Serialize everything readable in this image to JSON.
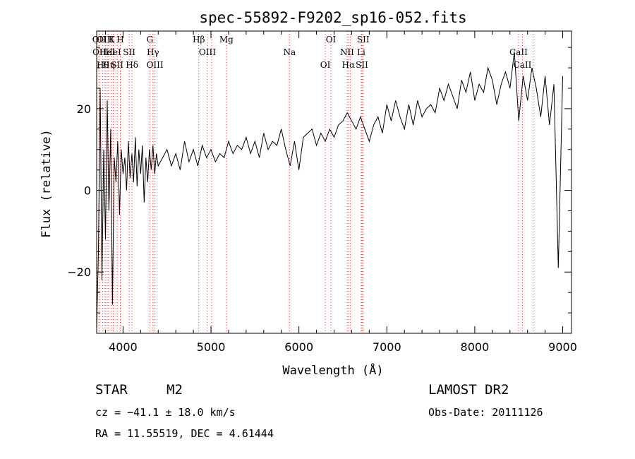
{
  "chart_data": {
    "type": "line",
    "title": "spec-55892-F9202_sp16-052.fits",
    "xlabel": "Wavelength (Å)",
    "ylabel": "Flux (relative)",
    "xlim": [
      3700,
      9100
    ],
    "ylim": [
      -35,
      39
    ],
    "x_ticks": [
      4000,
      5000,
      6000,
      7000,
      8000,
      9000
    ],
    "y_ticks": [
      -20,
      0,
      20
    ],
    "grid": false,
    "series": [
      {
        "name": "",
        "color": "#000000",
        "x": [
          3700,
          3720,
          3740,
          3760,
          3780,
          3800,
          3820,
          3840,
          3860,
          3880,
          3900,
          3920,
          3940,
          3960,
          3980,
          4000,
          4020,
          4040,
          4060,
          4080,
          4100,
          4120,
          4140,
          4160,
          4180,
          4200,
          4220,
          4240,
          4260,
          4280,
          4300,
          4320,
          4340,
          4360,
          4380,
          4400,
          4450,
          4500,
          4550,
          4600,
          4650,
          4700,
          4750,
          4800,
          4850,
          4900,
          4950,
          5000,
          5050,
          5100,
          5150,
          5200,
          5250,
          5300,
          5350,
          5400,
          5450,
          5500,
          5550,
          5600,
          5650,
          5700,
          5750,
          5800,
          5850,
          5900,
          5950,
          6000,
          6050,
          6100,
          6150,
          6200,
          6250,
          6300,
          6350,
          6400,
          6450,
          6500,
          6550,
          6600,
          6650,
          6700,
          6750,
          6800,
          6850,
          6900,
          6950,
          7000,
          7050,
          7100,
          7150,
          7200,
          7250,
          7300,
          7350,
          7400,
          7450,
          7500,
          7550,
          7600,
          7650,
          7700,
          7750,
          7800,
          7850,
          7900,
          7950,
          8000,
          8050,
          8100,
          8150,
          8200,
          8250,
          8300,
          8350,
          8400,
          8450,
          8500,
          8550,
          8600,
          8650,
          8700,
          8750,
          8800,
          8850,
          8900,
          8950,
          9000
        ],
        "y": [
          -34,
          -15,
          25,
          -22,
          10,
          -12,
          22,
          -5,
          15,
          -28,
          8,
          2,
          12,
          -6,
          10,
          4,
          8,
          0,
          12,
          3,
          9,
          2,
          13,
          1,
          10,
          4,
          11,
          -3,
          8,
          2,
          10,
          5,
          11,
          4,
          9,
          6,
          8,
          10,
          6,
          9,
          5,
          12,
          7,
          10,
          6,
          11,
          8,
          10,
          7,
          9,
          8,
          12,
          9,
          11,
          10,
          13,
          9,
          12,
          8,
          14,
          10,
          12,
          11,
          15,
          10,
          6,
          12,
          5,
          13,
          14,
          15,
          11,
          14,
          12,
          15,
          13,
          16,
          17,
          19,
          17,
          15,
          18,
          15,
          12,
          16,
          18,
          14,
          21,
          17,
          22,
          18,
          15,
          21,
          16,
          22,
          18,
          20,
          21,
          19,
          25,
          22,
          26,
          23,
          20,
          27,
          24,
          29,
          22,
          26,
          24,
          30,
          27,
          21,
          26,
          29,
          25,
          34,
          17,
          28,
          22,
          30,
          25,
          18,
          28,
          16,
          26,
          -19,
          28
        ]
      }
    ],
    "line_markers": [
      {
        "x": 3727,
        "label": "OII"
      },
      {
        "x": 3730,
        "label": "OII"
      },
      {
        "x": 3770,
        "label": "Hθ"
      },
      {
        "x": 3798,
        "label": "OIII"
      },
      {
        "x": 3820,
        "label": "HeI"
      },
      {
        "x": 3835,
        "label": "Hη"
      },
      {
        "x": 3870,
        "label": "K"
      },
      {
        "x": 3889,
        "label": "HeI"
      },
      {
        "x": 3934,
        "label": "SII"
      },
      {
        "x": 3969,
        "label": "H"
      },
      {
        "x": 4070,
        "label": "SII"
      },
      {
        "x": 4102,
        "label": "Hδ"
      },
      {
        "x": 4305,
        "label": "G"
      },
      {
        "x": 4340,
        "label": "Hγ"
      },
      {
        "x": 4363,
        "label": "OIII"
      },
      {
        "x": 4861,
        "label": "Hβ"
      },
      {
        "x": 4959,
        "label": "OIII"
      },
      {
        "x": 5007,
        "label": ""
      },
      {
        "x": 5175,
        "label": "Mg"
      },
      {
        "x": 5893,
        "label": "Na"
      },
      {
        "x": 6300,
        "label": "OI"
      },
      {
        "x": 6364,
        "label": "OI"
      },
      {
        "x": 6548,
        "label": "NII"
      },
      {
        "x": 6563,
        "label": "Hα"
      },
      {
        "x": 6583,
        "label": ""
      },
      {
        "x": 6708,
        "label": "Li"
      },
      {
        "x": 6717,
        "label": "SII"
      },
      {
        "x": 6731,
        "label": "SII"
      },
      {
        "x": 8498,
        "label": "CaII"
      },
      {
        "x": 8542,
        "label": "CaII"
      },
      {
        "x": 8662,
        "label": ""
      }
    ]
  },
  "info": {
    "object_class": "STAR",
    "subclass": "M2",
    "survey": "LAMOST DR2",
    "cz_text": "cz = −41.1 ± 18.0 km/s",
    "obs_date": "Obs-Date: 20111126",
    "coords": "RA =  11.55519, DEC =   4.61444"
  }
}
